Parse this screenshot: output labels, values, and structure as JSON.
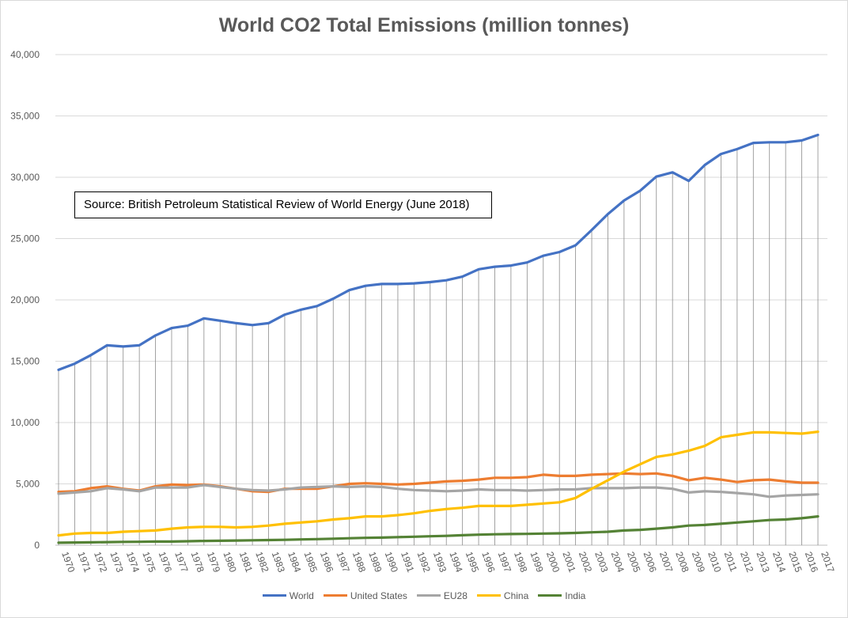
{
  "title": "World CO2 Total Emissions (million tonnes)",
  "source_note": "Source: British Petroleum Statistical Review of World Energy (June 2018)",
  "chart_data": {
    "type": "line",
    "title": "World CO2 Total Emissions (million tonnes)",
    "xlabel": "",
    "ylabel": "",
    "ylim": [
      0,
      40000
    ],
    "yticks": [
      "0",
      "5,000",
      "10,000",
      "15,000",
      "20,000",
      "25,000",
      "30,000",
      "35,000",
      "40,000"
    ],
    "grid": "horizontal gridlines; vertical drop lines from World series to axis",
    "legend_position": "bottom",
    "x": [
      "1970",
      "1971",
      "1972",
      "1973",
      "1974",
      "1975",
      "1976",
      "1977",
      "1978",
      "1979",
      "1980",
      "1981",
      "1982",
      "1983",
      "1984",
      "1985",
      "1986",
      "1987",
      "1988",
      "1989",
      "1990",
      "1991",
      "1992",
      "1993",
      "1994",
      "1995",
      "1996",
      "1997",
      "1998",
      "1999",
      "2000",
      "2001",
      "2002",
      "2003",
      "2004",
      "2005",
      "2006",
      "2007",
      "2008",
      "2009",
      "2010",
      "2011",
      "2012",
      "2013",
      "2014",
      "2015",
      "2016",
      "2017"
    ],
    "series": [
      {
        "name": "World",
        "color": "#4472c4",
        "values": [
          14300,
          14800,
          15500,
          16300,
          16200,
          16300,
          17100,
          17700,
          17900,
          18500,
          18300,
          18100,
          17950,
          18100,
          18800,
          19200,
          19500,
          20100,
          20800,
          21150,
          21300,
          21300,
          21350,
          21450,
          21600,
          21900,
          22500,
          22700,
          22800,
          23050,
          23600,
          23900,
          24450,
          25700,
          27000,
          28100,
          28900,
          30050,
          30400,
          29700,
          31000,
          31900,
          32300,
          32800,
          32850,
          32850,
          33000,
          33450
        ]
      },
      {
        "name": "United States",
        "color": "#ed7d31",
        "values": [
          4350,
          4400,
          4650,
          4800,
          4600,
          4450,
          4800,
          4950,
          4900,
          4950,
          4800,
          4600,
          4400,
          4350,
          4600,
          4600,
          4600,
          4800,
          5000,
          5050,
          5000,
          4950,
          5000,
          5100,
          5200,
          5250,
          5350,
          5500,
          5500,
          5550,
          5750,
          5650,
          5650,
          5750,
          5800,
          5850,
          5800,
          5850,
          5650,
          5300,
          5500,
          5350,
          5150,
          5300,
          5350,
          5200,
          5100,
          5100
        ]
      },
      {
        "name": "EU28",
        "color": "#a5a5a5",
        "values": [
          4200,
          4300,
          4400,
          4650,
          4550,
          4400,
          4700,
          4700,
          4700,
          4900,
          4750,
          4600,
          4500,
          4450,
          4550,
          4700,
          4750,
          4800,
          4750,
          4800,
          4750,
          4600,
          4500,
          4450,
          4400,
          4450,
          4550,
          4500,
          4500,
          4450,
          4500,
          4550,
          4550,
          4650,
          4650,
          4650,
          4700,
          4700,
          4600,
          4300,
          4400,
          4350,
          4250,
          4150,
          3950,
          4050,
          4100,
          4150
        ]
      },
      {
        "name": "China",
        "color": "#ffc000",
        "values": [
          800,
          950,
          1000,
          1000,
          1100,
          1150,
          1200,
          1350,
          1450,
          1500,
          1500,
          1450,
          1500,
          1600,
          1750,
          1850,
          1950,
          2100,
          2200,
          2350,
          2350,
          2450,
          2600,
          2800,
          2950,
          3050,
          3200,
          3200,
          3200,
          3300,
          3400,
          3500,
          3850,
          4600,
          5300,
          6000,
          6600,
          7200,
          7400,
          7700,
          8100,
          8800,
          9000,
          9200,
          9200,
          9150,
          9100,
          9250
        ]
      },
      {
        "name": "India",
        "color": "#548235",
        "values": [
          200,
          220,
          230,
          250,
          270,
          280,
          300,
          300,
          320,
          350,
          360,
          380,
          400,
          420,
          440,
          470,
          500,
          530,
          570,
          600,
          620,
          660,
          690,
          730,
          760,
          810,
          860,
          890,
          910,
          920,
          950,
          970,
          1000,
          1050,
          1100,
          1200,
          1250,
          1350,
          1450,
          1600,
          1650,
          1750,
          1850,
          1950,
          2050,
          2100,
          2200,
          2350
        ]
      }
    ]
  }
}
